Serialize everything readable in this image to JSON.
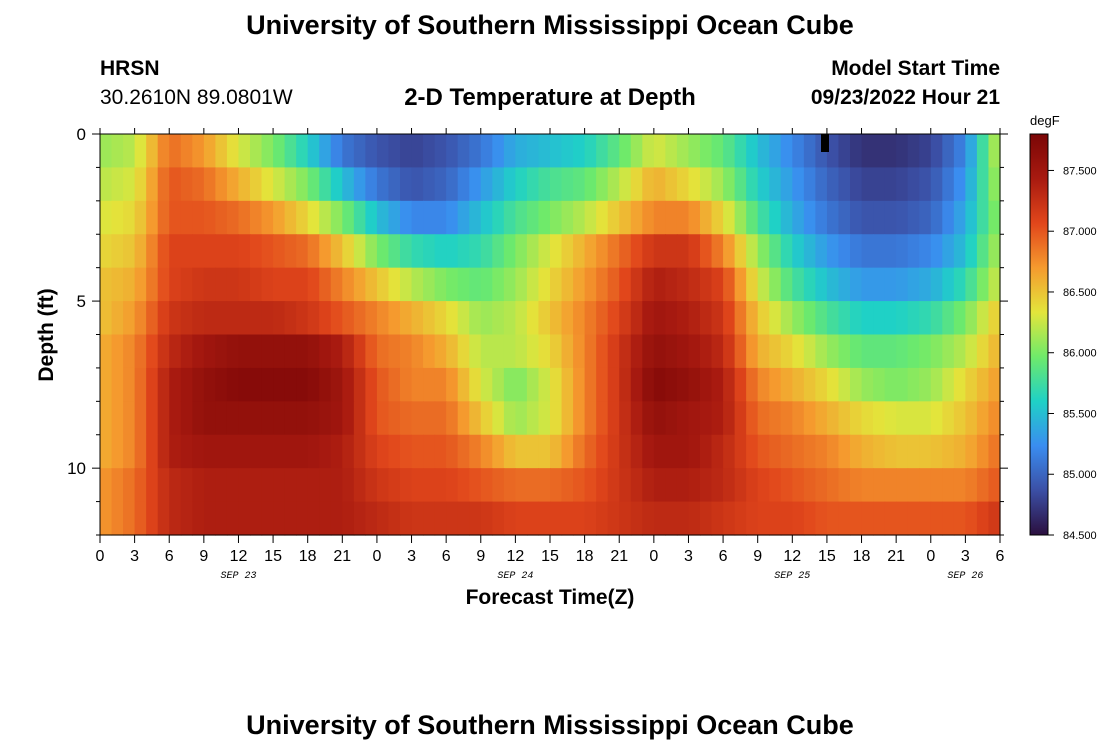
{
  "header": {
    "title": "University of Southern Mississippi Ocean Cube",
    "station": "HRSN",
    "coords": "30.2610N  89.0801W",
    "chart_title": "2-D Temperature at Depth",
    "model_label": "Model Start Time",
    "model_time": "09/23/2022 Hour 21"
  },
  "footer": {
    "title": "University of Southern Mississippi Ocean Cube"
  },
  "colors": {
    "stops": [
      "#2b0f3e",
      "#3b4fa5",
      "#3a8df0",
      "#1fd1c6",
      "#6fea6a",
      "#e3e53b",
      "#f59a2e",
      "#e1461b",
      "#a81a10",
      "#7a0606"
    ]
  },
  "chart_data": {
    "type": "heatmap",
    "title": "2-D Temperature at Depth",
    "xlabel": "Forecast Time(Z)",
    "ylabel": "Depth (ft)",
    "colorbar_unit": "degF",
    "clim": [
      84.5,
      87.8
    ],
    "colorbar_ticks": [
      {
        "value": 84.5,
        "label": "84.500"
      },
      {
        "value": 85.0,
        "label": "85.000"
      },
      {
        "value": 85.5,
        "label": "85.500"
      },
      {
        "value": 86.0,
        "label": "86.000"
      },
      {
        "value": 86.5,
        "label": "86.500"
      },
      {
        "value": 87.0,
        "label": "87.000"
      },
      {
        "value": 87.5,
        "label": "87.500"
      }
    ],
    "xlim_hours": [
      0,
      78
    ],
    "ylim_ft": [
      0,
      12
    ],
    "y_ticks": [
      {
        "value": 0,
        "label": "0"
      },
      {
        "value": 5,
        "label": "5"
      },
      {
        "value": 10,
        "label": "10"
      }
    ],
    "x_ticks": [
      {
        "hour": 0,
        "label": "0"
      },
      {
        "hour": 3,
        "label": "3"
      },
      {
        "hour": 6,
        "label": "6"
      },
      {
        "hour": 9,
        "label": "9"
      },
      {
        "hour": 12,
        "label": "12"
      },
      {
        "hour": 15,
        "label": "15"
      },
      {
        "hour": 18,
        "label": "18"
      },
      {
        "hour": 21,
        "label": "21"
      },
      {
        "hour": 24,
        "label": "0"
      },
      {
        "hour": 27,
        "label": "3"
      },
      {
        "hour": 30,
        "label": "6"
      },
      {
        "hour": 33,
        "label": "9"
      },
      {
        "hour": 36,
        "label": "12"
      },
      {
        "hour": 39,
        "label": "15"
      },
      {
        "hour": 42,
        "label": "18"
      },
      {
        "hour": 45,
        "label": "21"
      },
      {
        "hour": 48,
        "label": "0"
      },
      {
        "hour": 51,
        "label": "3"
      },
      {
        "hour": 54,
        "label": "6"
      },
      {
        "hour": 57,
        "label": "9"
      },
      {
        "hour": 60,
        "label": "12"
      },
      {
        "hour": 63,
        "label": "15"
      },
      {
        "hour": 66,
        "label": "18"
      },
      {
        "hour": 69,
        "label": "21"
      },
      {
        "hour": 72,
        "label": "0"
      },
      {
        "hour": 75,
        "label": "3"
      },
      {
        "hour": 78,
        "label": "6"
      }
    ],
    "date_labels": [
      {
        "hour": 12,
        "label": "SEP 23"
      },
      {
        "hour": 36,
        "label": "SEP 24"
      },
      {
        "hour": 60,
        "label": "SEP 25"
      },
      {
        "hour": 75,
        "label": "SEP 26"
      }
    ],
    "depth_levels_ft": [
      0.5,
      1.5,
      2.5,
      3.5,
      4.5,
      5.5,
      6.5,
      7.5,
      8.5,
      9.5,
      10.5,
      11.5
    ],
    "anchor_hours": [
      0,
      3,
      6,
      9,
      12,
      15,
      18,
      21,
      24,
      27,
      30,
      33,
      36,
      39,
      42,
      45,
      48,
      51,
      54,
      57,
      60,
      63,
      66,
      69,
      72,
      75,
      78
    ],
    "temperature_degF": [
      [
        86.1,
        86.2,
        86.9,
        86.7,
        86.3,
        86.0,
        85.6,
        85.1,
        84.9,
        84.8,
        84.9,
        85.1,
        85.4,
        85.5,
        85.6,
        85.9,
        86.3,
        86.1,
        85.9,
        85.5,
        85.2,
        84.9,
        84.7,
        84.7,
        84.8,
        85.2,
        86.3
      ],
      [
        86.2,
        86.3,
        87.0,
        86.9,
        86.6,
        86.3,
        86.0,
        85.5,
        85.1,
        84.9,
        85.0,
        85.3,
        85.6,
        85.8,
        85.9,
        86.2,
        86.6,
        86.4,
        86.1,
        85.6,
        85.3,
        85.0,
        84.8,
        84.8,
        84.9,
        85.3,
        86.2
      ],
      [
        86.3,
        86.4,
        87.0,
        87.0,
        86.9,
        86.7,
        86.4,
        86.0,
        85.5,
        85.2,
        85.2,
        85.5,
        85.8,
        86.0,
        86.2,
        86.5,
        86.8,
        86.8,
        86.4,
        85.8,
        85.4,
        85.1,
        84.9,
        84.9,
        85.0,
        85.4,
        86.1
      ],
      [
        86.4,
        86.5,
        87.1,
        87.1,
        87.1,
        87.0,
        86.9,
        86.5,
        86.0,
        85.7,
        85.6,
        85.7,
        86.0,
        86.3,
        86.6,
        86.9,
        87.2,
        87.2,
        86.8,
        86.1,
        85.6,
        85.3,
        85.1,
        85.1,
        85.2,
        85.5,
        86.2
      ],
      [
        86.5,
        86.6,
        87.1,
        87.2,
        87.2,
        87.1,
        87.1,
        86.8,
        86.5,
        86.2,
        86.0,
        85.9,
        86.1,
        86.4,
        86.7,
        87.0,
        87.4,
        87.3,
        87.1,
        86.3,
        85.8,
        85.5,
        85.3,
        85.3,
        85.4,
        85.7,
        86.3
      ],
      [
        86.5,
        86.7,
        87.2,
        87.3,
        87.3,
        87.3,
        87.2,
        87.0,
        86.8,
        86.6,
        86.4,
        86.1,
        86.2,
        86.5,
        86.8,
        87.1,
        87.5,
        87.4,
        87.2,
        86.5,
        86.1,
        85.8,
        85.6,
        85.6,
        85.7,
        86.0,
        86.5
      ],
      [
        86.6,
        86.8,
        87.3,
        87.5,
        87.6,
        87.6,
        87.6,
        87.4,
        86.9,
        86.8,
        86.6,
        86.2,
        86.2,
        86.4,
        86.8,
        87.2,
        87.6,
        87.5,
        87.3,
        86.6,
        86.4,
        86.1,
        85.9,
        85.9,
        86.0,
        86.2,
        86.6
      ],
      [
        86.6,
        86.8,
        87.4,
        87.6,
        87.7,
        87.7,
        87.7,
        87.5,
        87.0,
        86.8,
        86.8,
        86.3,
        86.0,
        86.3,
        86.8,
        87.2,
        87.7,
        87.6,
        87.4,
        86.8,
        86.6,
        86.4,
        86.1,
        86.0,
        86.1,
        86.4,
        86.7
      ],
      [
        86.6,
        86.8,
        87.4,
        87.6,
        87.6,
        87.6,
        87.6,
        87.5,
        87.0,
        86.9,
        86.9,
        86.5,
        86.1,
        86.3,
        86.8,
        87.2,
        87.6,
        87.5,
        87.4,
        86.9,
        86.8,
        86.6,
        86.4,
        86.3,
        86.3,
        86.5,
        86.8
      ],
      [
        86.6,
        86.8,
        87.4,
        87.5,
        87.5,
        87.5,
        87.5,
        87.4,
        87.1,
        87.0,
        87.0,
        86.8,
        86.5,
        86.5,
        86.9,
        87.2,
        87.5,
        87.5,
        87.3,
        87.0,
        86.9,
        86.8,
        86.6,
        86.5,
        86.5,
        86.6,
        86.9
      ],
      [
        86.7,
        86.9,
        87.3,
        87.4,
        87.4,
        87.4,
        87.4,
        87.4,
        87.2,
        87.1,
        87.1,
        87.0,
        86.9,
        86.9,
        87.0,
        87.2,
        87.4,
        87.4,
        87.3,
        87.1,
        87.0,
        86.9,
        86.8,
        86.8,
        86.8,
        86.8,
        87.0
      ],
      [
        86.7,
        86.9,
        87.3,
        87.4,
        87.4,
        87.4,
        87.4,
        87.4,
        87.3,
        87.2,
        87.2,
        87.2,
        87.1,
        87.1,
        87.1,
        87.2,
        87.3,
        87.3,
        87.2,
        87.1,
        87.1,
        87.0,
        87.0,
        87.0,
        87.0,
        87.0,
        87.2
      ]
    ]
  }
}
